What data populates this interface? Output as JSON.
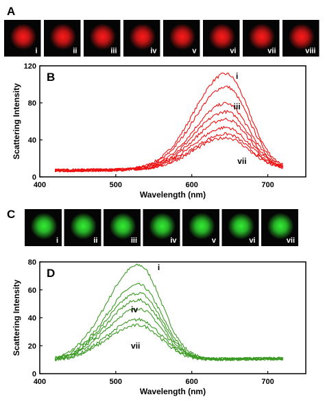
{
  "panels": {
    "A": {
      "letter": "A",
      "tiles": [
        {
          "label": "i"
        },
        {
          "label": "ii"
        },
        {
          "label": "iii"
        },
        {
          "label": "iv"
        },
        {
          "label": "v"
        },
        {
          "label": "vi"
        },
        {
          "label": "vii"
        },
        {
          "label": "viii"
        }
      ],
      "glow_color": "#ff1a1a"
    },
    "C": {
      "letter": "C",
      "tiles": [
        {
          "label": "i"
        },
        {
          "label": "ii"
        },
        {
          "label": "iii"
        },
        {
          "label": "iv"
        },
        {
          "label": "v"
        },
        {
          "label": "vi"
        },
        {
          "label": "vii"
        }
      ],
      "glow_color": "#33ee33"
    }
  },
  "chart_data": [
    {
      "panel": "B",
      "type": "line",
      "title": "",
      "xlabel": "Wavelength (nm)",
      "ylabel": "Scattering Intensity",
      "xlim": [
        400,
        750
      ],
      "ylim": [
        0,
        120
      ],
      "xticks": [
        400,
        500,
        600,
        700
      ],
      "yticks": [
        0,
        40,
        80,
        120
      ],
      "color": "#ee1111",
      "range": [
        420,
        720
      ],
      "peak_x": 645,
      "baseline": 7,
      "series_peaks": [
        110,
        96,
        78,
        69,
        61,
        52,
        45,
        41
      ],
      "annotations": [
        {
          "text": "i",
          "x": 658,
          "y": 106
        },
        {
          "text": "iii",
          "x": 655,
          "y": 73
        },
        {
          "text": "vii",
          "x": 660,
          "y": 14
        }
      ]
    },
    {
      "panel": "D",
      "type": "line",
      "title": "",
      "xlabel": "Wavelength (nm)",
      "ylabel": "Scattering Intensity",
      "xlim": [
        400,
        750
      ],
      "ylim": [
        0,
        80
      ],
      "xticks": [
        400,
        500,
        600,
        700
      ],
      "yticks": [
        0,
        20,
        40,
        60,
        80
      ],
      "color": "#3a9a22",
      "range": [
        420,
        720
      ],
      "peak_x": 530,
      "baseline": 9,
      "series_peaks": [
        77,
        63,
        57,
        52,
        46,
        38,
        34
      ],
      "annotations": [
        {
          "text": "i",
          "x": 555,
          "y": 74
        },
        {
          "text": "iv",
          "x": 520,
          "y": 44
        },
        {
          "text": "vii",
          "x": 520,
          "y": 18
        }
      ]
    }
  ]
}
